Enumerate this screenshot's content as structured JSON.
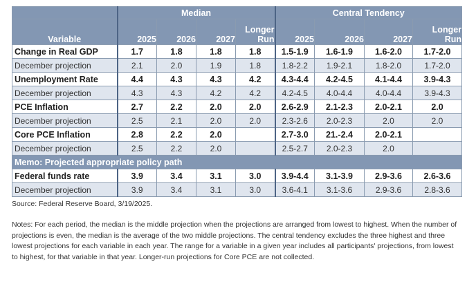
{
  "header": {
    "median_label": "Median",
    "central_label": "Central Tendency",
    "variable_label": "Variable",
    "median_years": [
      "2025",
      "2026",
      "2027",
      "Longer\nRun"
    ],
    "central_years": [
      "2025",
      "2026",
      "2027",
      "Longer\nRun"
    ]
  },
  "rows": [
    {
      "label": "Change in Real GDP",
      "median": [
        "1.7",
        "1.8",
        "1.8",
        "1.8"
      ],
      "central": [
        "1.5-1.9",
        "1.6-1.9",
        "1.6-2.0",
        "1.7-2.0"
      ]
    },
    {
      "label": "December projection",
      "median": [
        "2.1",
        "2.0",
        "1.9",
        "1.8"
      ],
      "central": [
        "1.8-2.2",
        "1.9-2.1",
        "1.8-2.0",
        "1.7-2.0"
      ]
    },
    {
      "label": "Unemployment Rate",
      "median": [
        "4.4",
        "4.3",
        "4.3",
        "4.2"
      ],
      "central": [
        "4.3-4.4",
        "4.2-4.5",
        "4.1-4.4",
        "3.9-4.3"
      ]
    },
    {
      "label": "December projection",
      "median": [
        "4.3",
        "4.3",
        "4.2",
        "4.2"
      ],
      "central": [
        "4.2-4.5",
        "4.0-4.4",
        "4.0-4.4",
        "3.9-4.3"
      ]
    },
    {
      "label": "PCE Inflation",
      "median": [
        "2.7",
        "2.2",
        "2.0",
        "2.0"
      ],
      "central": [
        "2.6-2.9",
        "2.1-2.3",
        "2.0-2.1",
        "2.0"
      ]
    },
    {
      "label": "December projection",
      "median": [
        "2.5",
        "2.1",
        "2.0",
        "2.0"
      ],
      "central": [
        "2.3-2.6",
        "2.0-2.3",
        "2.0",
        "2.0"
      ]
    },
    {
      "label": "Core PCE Inflation",
      "median": [
        "2.8",
        "2.2",
        "2.0",
        ""
      ],
      "central": [
        "2.7-3.0",
        "21.-2.4",
        "2.0-2.1",
        ""
      ]
    },
    {
      "label": "December projection",
      "median": [
        "2.5",
        "2.2",
        "2.0",
        ""
      ],
      "central": [
        "2.5-2.7",
        "2.0-2.3",
        "2.0",
        ""
      ]
    }
  ],
  "memo_label": "Memo: Projected appropriate policy path",
  "memo_rows": [
    {
      "label": "Federal funds rate",
      "median": [
        "3.9",
        "3.4",
        "3.1",
        "3.0"
      ],
      "central": [
        "3.9-4.4",
        "3.1-3.9",
        "2.9-3.6",
        "2.6-3.6"
      ]
    },
    {
      "label": "December projection",
      "median": [
        "3.9",
        "3.4",
        "3.1",
        "3.0"
      ],
      "central": [
        "3.6-4.1",
        "3.1-3.6",
        "2.9-3.6",
        "2.8-3.6"
      ]
    }
  ],
  "source": "Source: Federal Reserve Board, 3/19/2025.",
  "notes": "Notes: For each period, the median is the middle projection when the projections are arranged from lowest to highest. When the number of projections is even, the median is the average of the two middle projections. The central tendency excludes the three highest and three lowest projections for each variable in each year. The range for a variable in a given year includes all participants' projections, from lowest to highest, for that variable in that year. Longer-run projections for Core PCE are not collected."
}
